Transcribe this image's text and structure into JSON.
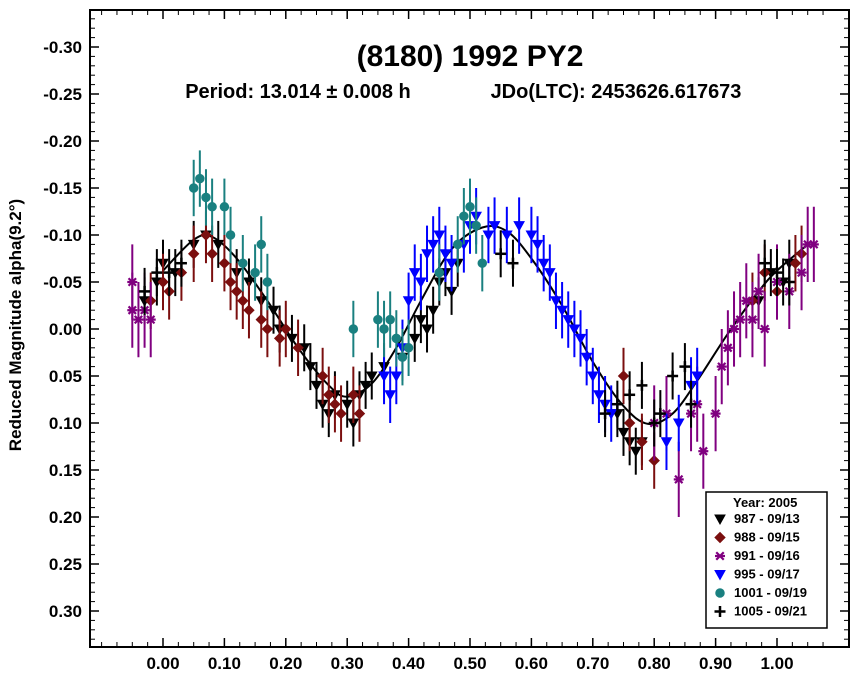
{
  "chart_data": {
    "type": "scatter",
    "title": "(8180) 1992 PY2",
    "period_label": "Period: 13.014 ± 0.008 h",
    "epoch_label": "JDo(LTC): 2453626.617673",
    "ylabel": "Reduced Magnitude alpha(9.2°)",
    "xlabel": "",
    "xlim": [
      -0.12,
      1.1
    ],
    "ylim": [
      0.34,
      -0.34
    ],
    "y_inverted": true,
    "x_ticks": [
      0.0,
      0.1,
      0.2,
      0.3,
      0.4,
      0.5,
      0.6,
      0.7,
      0.8,
      0.9,
      1.0
    ],
    "x_tick_labels": [
      "0.00",
      "0.10",
      "0.20",
      "0.30",
      "0.40",
      "0.50",
      "0.60",
      "0.70",
      "0.80",
      "0.90",
      "1.00"
    ],
    "y_ticks": [
      -0.3,
      -0.25,
      -0.2,
      -0.15,
      -0.1,
      -0.05,
      0.0,
      0.05,
      0.1,
      0.15,
      0.2,
      0.25,
      0.3
    ],
    "y_tick_labels": [
      "-0.30",
      "-0.25",
      "-0.20",
      "-0.15",
      "-0.10",
      "-0.05",
      "0.00",
      "0.05",
      "0.10",
      "0.15",
      "0.20",
      "0.25",
      "0.30"
    ],
    "legend": {
      "title": "Year: 2005",
      "position": "bottom-right"
    },
    "fit_curve": {
      "mean": 0.0,
      "terms": [
        {
          "harmonic": 1,
          "cos": 0.0,
          "sin": 0.0
        },
        {
          "harmonic": 2,
          "cos": -0.02,
          "sin": 0.0
        }
      ],
      "points": [
        [
          0.0,
          -0.062
        ],
        [
          0.05,
          -0.095
        ],
        [
          0.08,
          -0.098
        ],
        [
          0.12,
          -0.075
        ],
        [
          0.17,
          -0.03
        ],
        [
          0.22,
          0.02
        ],
        [
          0.27,
          0.06
        ],
        [
          0.3,
          0.072
        ],
        [
          0.34,
          0.058
        ],
        [
          0.38,
          0.02
        ],
        [
          0.42,
          -0.03
        ],
        [
          0.47,
          -0.085
        ],
        [
          0.52,
          -0.108
        ],
        [
          0.56,
          -0.104
        ],
        [
          0.6,
          -0.075
        ],
        [
          0.65,
          -0.025
        ],
        [
          0.7,
          0.035
        ],
        [
          0.75,
          0.082
        ],
        [
          0.79,
          0.101
        ],
        [
          0.83,
          0.09
        ],
        [
          0.87,
          0.055
        ],
        [
          0.92,
          0.005
        ],
        [
          0.97,
          -0.04
        ],
        [
          1.0,
          -0.062
        ],
        [
          1.05,
          -0.09
        ]
      ]
    },
    "series": [
      {
        "name": "987 - 09/13",
        "marker": "triangle-down",
        "color": "#000000",
        "err": 0.025,
        "points": [
          [
            -0.03,
            -0.03
          ],
          [
            -0.01,
            -0.05
          ],
          [
            0.0,
            -0.07
          ],
          [
            0.02,
            -0.06
          ],
          [
            0.05,
            -0.09
          ],
          [
            0.07,
            -0.1
          ],
          [
            0.09,
            -0.09
          ],
          [
            0.12,
            -0.06
          ],
          [
            0.14,
            -0.05
          ],
          [
            0.16,
            -0.03
          ],
          [
            0.18,
            -0.02
          ],
          [
            0.19,
            0.0
          ],
          [
            0.21,
            0.01
          ],
          [
            0.23,
            0.02
          ],
          [
            0.24,
            0.04
          ],
          [
            0.25,
            0.06
          ],
          [
            0.26,
            0.08
          ],
          [
            0.27,
            0.09
          ],
          [
            0.28,
            0.07
          ],
          [
            0.3,
            0.08
          ],
          [
            0.31,
            0.1
          ],
          [
            0.32,
            0.07
          ],
          [
            0.33,
            0.06
          ],
          [
            0.34,
            0.05
          ],
          [
            0.36,
            0.04
          ],
          [
            0.39,
            0.03
          ],
          [
            0.41,
            0.01
          ],
          [
            0.42,
            -0.01
          ],
          [
            0.43,
            0.0
          ],
          [
            0.44,
            -0.02
          ],
          [
            0.45,
            -0.05
          ],
          [
            0.46,
            -0.06
          ],
          [
            0.47,
            -0.04
          ],
          [
            0.48,
            -0.07
          ],
          [
            0.74,
            0.09
          ],
          [
            0.75,
            0.11
          ],
          [
            0.76,
            0.12
          ],
          [
            0.77,
            0.13
          ],
          [
            0.78,
            0.12
          ],
          [
            0.97,
            -0.03
          ],
          [
            0.99,
            -0.06
          ],
          [
            1.01,
            -0.05
          ],
          [
            1.02,
            -0.07
          ]
        ]
      },
      {
        "name": "988 - 09/15",
        "marker": "diamond",
        "color": "#7b0f0f",
        "err": 0.03,
        "points": [
          [
            -0.02,
            -0.03
          ],
          [
            0.0,
            -0.05
          ],
          [
            0.01,
            -0.04
          ],
          [
            0.03,
            -0.06
          ],
          [
            0.05,
            -0.08
          ],
          [
            0.07,
            -0.1
          ],
          [
            0.08,
            -0.08
          ],
          [
            0.1,
            -0.07
          ],
          [
            0.11,
            -0.05
          ],
          [
            0.12,
            -0.04
          ],
          [
            0.13,
            -0.03
          ],
          [
            0.14,
            -0.02
          ],
          [
            0.16,
            -0.01
          ],
          [
            0.17,
            0.0
          ],
          [
            0.19,
            0.01
          ],
          [
            0.2,
            0.0
          ],
          [
            0.22,
            0.02
          ],
          [
            0.26,
            0.05
          ],
          [
            0.27,
            0.07
          ],
          [
            0.28,
            0.08
          ],
          [
            0.29,
            0.09
          ],
          [
            0.31,
            0.07
          ],
          [
            0.32,
            0.09
          ],
          [
            0.75,
            0.05
          ],
          [
            0.76,
            0.1
          ],
          [
            0.78,
            0.12
          ],
          [
            0.8,
            0.14
          ],
          [
            0.96,
            -0.03
          ],
          [
            0.98,
            -0.06
          ],
          [
            1.0,
            -0.04
          ],
          [
            1.03,
            -0.07
          ],
          [
            1.04,
            -0.08
          ]
        ]
      },
      {
        "name": "991 - 09/16",
        "marker": "asterisk",
        "color": "#800080",
        "err": 0.04,
        "points": [
          [
            -0.05,
            -0.05
          ],
          [
            -0.05,
            -0.02
          ],
          [
            -0.04,
            -0.01
          ],
          [
            -0.03,
            -0.02
          ],
          [
            -0.02,
            -0.01
          ],
          [
            0.8,
            0.1
          ],
          [
            0.82,
            0.09
          ],
          [
            0.84,
            0.16
          ],
          [
            0.86,
            0.09
          ],
          [
            0.87,
            0.08
          ],
          [
            0.88,
            0.13
          ],
          [
            0.9,
            0.09
          ],
          [
            0.91,
            0.04
          ],
          [
            0.92,
            0.02
          ],
          [
            0.93,
            0.0
          ],
          [
            0.94,
            -0.01
          ],
          [
            0.95,
            -0.03
          ],
          [
            0.96,
            -0.01
          ],
          [
            0.97,
            -0.04
          ],
          [
            0.98,
            0.0
          ],
          [
            1.0,
            -0.05
          ],
          [
            1.02,
            -0.04
          ],
          [
            1.04,
            -0.06
          ],
          [
            1.05,
            -0.09
          ],
          [
            1.06,
            -0.09
          ]
        ]
      },
      {
        "name": "995 - 09/17",
        "marker": "triangle-down",
        "color": "#0000ff",
        "err": 0.03,
        "points": [
          [
            0.36,
            0.05
          ],
          [
            0.37,
            0.07
          ],
          [
            0.38,
            0.05
          ],
          [
            0.39,
            0.02
          ],
          [
            0.4,
            -0.03
          ],
          [
            0.41,
            -0.06
          ],
          [
            0.42,
            -0.05
          ],
          [
            0.43,
            -0.08
          ],
          [
            0.44,
            -0.09
          ],
          [
            0.45,
            -0.1
          ],
          [
            0.46,
            -0.08
          ],
          [
            0.47,
            -0.07
          ],
          [
            0.49,
            -0.09
          ],
          [
            0.5,
            -0.11
          ],
          [
            0.51,
            -0.12
          ],
          [
            0.53,
            -0.1
          ],
          [
            0.54,
            -0.11
          ],
          [
            0.56,
            -0.1
          ],
          [
            0.58,
            -0.11
          ],
          [
            0.6,
            -0.1
          ],
          [
            0.61,
            -0.09
          ],
          [
            0.62,
            -0.07
          ],
          [
            0.63,
            -0.06
          ],
          [
            0.64,
            -0.03
          ],
          [
            0.65,
            -0.02
          ],
          [
            0.66,
            -0.01
          ],
          [
            0.67,
            0.0
          ],
          [
            0.68,
            0.01
          ],
          [
            0.69,
            0.03
          ],
          [
            0.7,
            0.05
          ],
          [
            0.71,
            0.07
          ],
          [
            0.72,
            0.08
          ],
          [
            0.73,
            0.09
          ],
          [
            0.82,
            0.12
          ],
          [
            0.84,
            0.1
          ],
          [
            0.86,
            0.06
          ],
          [
            0.87,
            0.05
          ]
        ]
      },
      {
        "name": "1001 - 09/19",
        "marker": "circle",
        "color": "#1a8080",
        "err": 0.03,
        "points": [
          [
            0.05,
            -0.15
          ],
          [
            0.06,
            -0.16
          ],
          [
            0.07,
            -0.14
          ],
          [
            0.08,
            -0.13
          ],
          [
            0.1,
            -0.13
          ],
          [
            0.11,
            -0.1
          ],
          [
            0.13,
            -0.07
          ],
          [
            0.15,
            -0.06
          ],
          [
            0.16,
            -0.09
          ],
          [
            0.17,
            -0.05
          ],
          [
            0.31,
            0.0
          ],
          [
            0.35,
            -0.01
          ],
          [
            0.36,
            0.0
          ],
          [
            0.37,
            -0.01
          ],
          [
            0.38,
            0.01
          ],
          [
            0.39,
            0.03
          ],
          [
            0.4,
            0.02
          ],
          [
            0.45,
            -0.06
          ],
          [
            0.48,
            -0.09
          ],
          [
            0.49,
            -0.12
          ],
          [
            0.5,
            -0.13
          ],
          [
            0.51,
            -0.11
          ],
          [
            0.52,
            -0.07
          ]
        ]
      },
      {
        "name": "1005 - 09/21",
        "marker": "plus",
        "color": "#000000",
        "err": 0.025,
        "points": [
          [
            -0.03,
            -0.04
          ],
          [
            -0.01,
            -0.06
          ],
          [
            0.01,
            -0.06
          ],
          [
            0.03,
            -0.07
          ],
          [
            0.55,
            -0.08
          ],
          [
            0.57,
            -0.07
          ],
          [
            0.72,
            0.09
          ],
          [
            0.74,
            0.08
          ],
          [
            0.76,
            0.07
          ],
          [
            0.78,
            0.06
          ],
          [
            0.8,
            0.1
          ],
          [
            0.81,
            0.09
          ],
          [
            0.83,
            0.05
          ],
          [
            0.85,
            0.04
          ],
          [
            0.86,
            0.08
          ],
          [
            0.98,
            -0.07
          ],
          [
            1.0,
            -0.06
          ],
          [
            1.02,
            -0.05
          ]
        ]
      }
    ]
  }
}
